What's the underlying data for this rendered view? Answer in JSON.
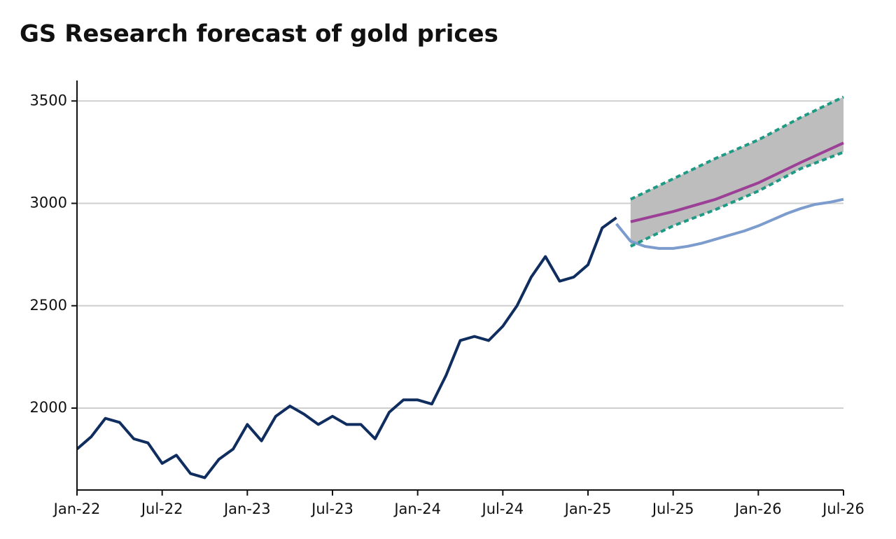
{
  "chart_data": {
    "type": "line",
    "title": "GS Research forecast of gold prices",
    "xlim": [
      "2022-01",
      "2026-07"
    ],
    "xticks": [
      {
        "value": "2022-01",
        "label": "Jan-22"
      },
      {
        "value": "2022-07",
        "label": "Jul-22"
      },
      {
        "value": "2023-01",
        "label": "Jan-23"
      },
      {
        "value": "2023-07",
        "label": "Jul-23"
      },
      {
        "value": "2024-01",
        "label": "Jan-24"
      },
      {
        "value": "2024-07",
        "label": "Jul-24"
      },
      {
        "value": "2025-01",
        "label": "Jan-25"
      },
      {
        "value": "2025-07",
        "label": "Jul-25"
      },
      {
        "value": "2026-01",
        "label": "Jan-26"
      },
      {
        "value": "2026-07",
        "label": "Jul-26"
      }
    ],
    "ylim": [
      1600,
      3600
    ],
    "yticks": [
      2000,
      2500,
      3000,
      3500
    ],
    "grid": true,
    "band_color": "#bdbdbd",
    "band_between": [
      2,
      3
    ],
    "series": [
      {
        "color": "#0f2d5e",
        "width": 4,
        "x": [
          "2022-01",
          "2022-02",
          "2022-03",
          "2022-04",
          "2022-05",
          "2022-06",
          "2022-07",
          "2022-08",
          "2022-09",
          "2022-10",
          "2022-11",
          "2022-12",
          "2023-01",
          "2023-02",
          "2023-03",
          "2023-04",
          "2023-05",
          "2023-06",
          "2023-07",
          "2023-08",
          "2023-09",
          "2023-10",
          "2023-11",
          "2023-12",
          "2024-01",
          "2024-02",
          "2024-03",
          "2024-04",
          "2024-05",
          "2024-06",
          "2024-07",
          "2024-08",
          "2024-09",
          "2024-10",
          "2024-11",
          "2024-12",
          "2025-01",
          "2025-02",
          "2025-03"
        ],
        "values": [
          1800,
          1860,
          1950,
          1930,
          1850,
          1830,
          1730,
          1770,
          1680,
          1660,
          1750,
          1800,
          1920,
          1840,
          1960,
          2010,
          1970,
          1920,
          1960,
          1920,
          1920,
          1850,
          1980,
          2040,
          2040,
          2020,
          2160,
          2330,
          2350,
          2330,
          2400,
          2500,
          2640,
          2740,
          2620,
          2640,
          2700,
          2880,
          2930
        ]
      },
      {
        "color": "#7b9ccc",
        "width": 4,
        "x": [
          "2025-03",
          "2025-04",
          "2025-05",
          "2025-06",
          "2025-07",
          "2025-08",
          "2025-09",
          "2025-10",
          "2025-11",
          "2025-12",
          "2026-01",
          "2026-02",
          "2026-03",
          "2026-04",
          "2026-05",
          "2026-06",
          "2026-07"
        ],
        "values": [
          2900,
          2815,
          2790,
          2780,
          2780,
          2790,
          2805,
          2825,
          2845,
          2865,
          2890,
          2920,
          2950,
          2975,
          2995,
          3005,
          3020
        ]
      },
      {
        "color": "#1f9a84",
        "width": 4,
        "dash": true,
        "x": [
          "2025-04",
          "2025-07",
          "2025-10",
          "2026-01",
          "2026-04",
          "2026-07"
        ],
        "values": [
          3020,
          3120,
          3220,
          3310,
          3420,
          3520
        ]
      },
      {
        "color": "#1f9a84",
        "width": 4,
        "dash": true,
        "x": [
          "2025-04",
          "2025-07",
          "2025-10",
          "2026-01",
          "2026-04",
          "2026-07"
        ],
        "values": [
          2790,
          2890,
          2970,
          3060,
          3170,
          3250
        ]
      },
      {
        "color": "#9c3f96",
        "width": 4,
        "x": [
          "2025-04",
          "2025-07",
          "2025-10",
          "2026-01",
          "2026-04",
          "2026-07"
        ],
        "values": [
          2910,
          2960,
          3020,
          3100,
          3200,
          3295
        ]
      }
    ]
  }
}
